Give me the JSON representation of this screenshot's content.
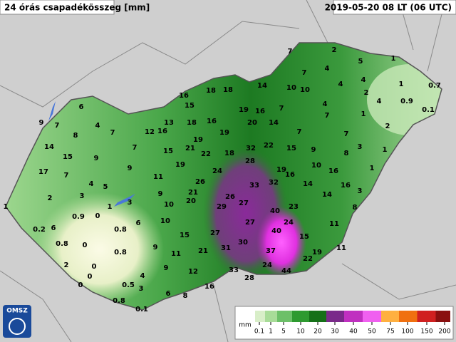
{
  "header": {
    "title": "24 órás csapadékösszeg [mm]",
    "datetime": "2019-05-20 08 LT (06 UTC)"
  },
  "logo": "OMSZ",
  "stations": [
    7,
    2,
    5,
    1,
    7,
    4,
    10,
    10,
    4,
    4,
    1,
    0.7,
    14,
    18,
    18,
    16,
    15,
    2,
    4,
    0.9,
    0.1,
    4,
    19,
    16,
    7,
    7,
    1,
    6,
    9,
    7,
    4,
    7,
    8,
    13,
    18,
    16,
    20,
    14,
    12,
    16,
    19,
    7,
    7,
    2,
    19,
    14,
    7,
    21,
    32,
    22,
    15,
    9,
    3,
    15,
    9,
    15,
    22,
    18,
    8,
    1,
    28,
    19,
    17,
    7,
    9,
    24,
    19,
    16,
    10,
    16,
    1,
    11,
    26,
    33,
    32,
    14,
    16,
    4,
    5,
    2,
    3,
    9,
    21,
    26,
    14,
    3,
    1,
    1,
    3,
    10,
    20,
    29,
    27,
    40,
    23,
    8,
    0.9,
    0,
    10,
    6,
    24,
    0.2,
    6,
    0.8,
    27,
    40,
    11,
    27,
    15,
    15,
    0.8,
    0,
    9,
    30,
    0.8,
    11,
    21,
    31,
    37,
    19,
    11,
    22,
    24,
    2,
    0,
    9,
    12,
    33,
    28,
    44,
    4,
    0,
    0.5,
    3,
    0,
    16,
    6,
    8,
    0.8,
    0.1
  ],
  "legend": {
    "unit": "mm",
    "labels": [
      0.1,
      1,
      5,
      10,
      20,
      30,
      40,
      50,
      75,
      100,
      150,
      200
    ]
  }
}
